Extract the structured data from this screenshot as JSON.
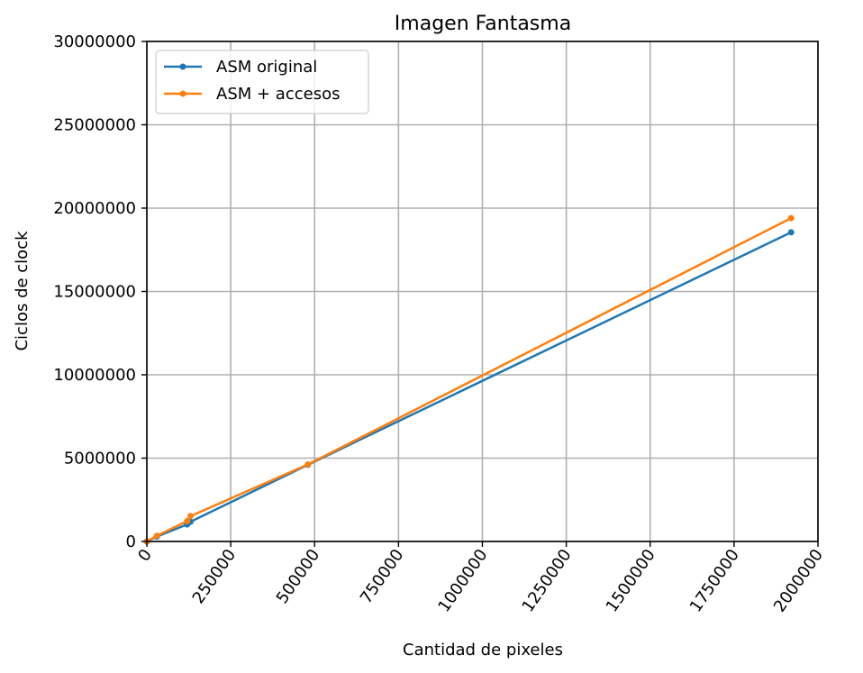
{
  "chart_data": {
    "type": "line",
    "title": "Imagen Fantasma",
    "xlabel": "Cantidad de pixeles",
    "ylabel": "Ciclos de clock",
    "xlim": [
      0,
      2000000
    ],
    "ylim": [
      0,
      30000000
    ],
    "xticks": [
      0,
      250000,
      500000,
      750000,
      1000000,
      1250000,
      1500000,
      1750000,
      2000000
    ],
    "yticks": [
      0,
      5000000,
      10000000,
      15000000,
      20000000,
      25000000,
      30000000
    ],
    "grid": true,
    "legend_position": "top-left",
    "series": [
      {
        "name": "ASM original",
        "color": "#1f77b4",
        "x": [
          0,
          30000,
          120000,
          130000,
          480000,
          1920000
        ],
        "y": [
          0,
          290000,
          1020000,
          1180000,
          4600000,
          18550000
        ]
      },
      {
        "name": "ASM + accesos",
        "color": "#ff7f0e",
        "x": [
          0,
          30000,
          120000,
          130000,
          480000,
          1920000
        ],
        "y": [
          0,
          340000,
          1220000,
          1520000,
          4620000,
          19400000
        ]
      }
    ]
  }
}
